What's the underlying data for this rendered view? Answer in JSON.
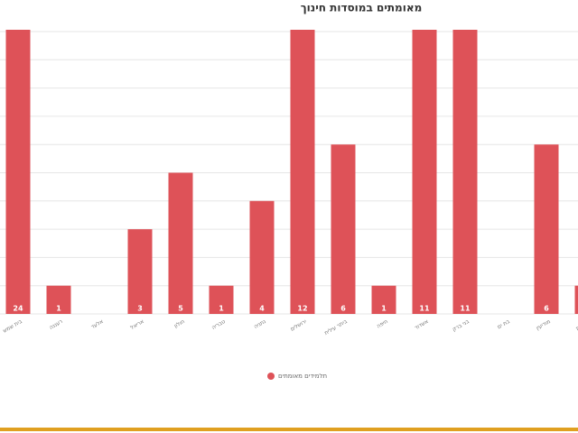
{
  "chart_data": {
    "type": "bar",
    "title": "מאומתים במוסדות חינוך",
    "categories": [
      "בית שמש",
      "רעננה",
      "אלעד",
      "אריאל",
      "חולון",
      "טבריה",
      "נתניה",
      "ירושלים",
      "ביתר עילית",
      "חיפה",
      "אשדוד",
      "בני ברק",
      "בת ים",
      "מודיעין",
      "רחובות"
    ],
    "values": [
      24,
      1,
      0,
      3,
      5,
      1,
      4,
      12,
      6,
      1,
      11,
      11,
      0,
      6,
      1
    ],
    "value_labels": [
      "24",
      "1",
      null,
      "3",
      "5",
      "1",
      "4",
      "12",
      "6",
      "1",
      "11",
      "11",
      null,
      "6",
      null
    ],
    "series_name": "תלמידים מאומתים",
    "color": "#de5258",
    "ylim": [
      0,
      10
    ],
    "yticks": [
      0,
      1,
      2,
      3,
      4,
      5,
      6,
      7,
      8,
      9,
      10
    ],
    "grid": true
  }
}
